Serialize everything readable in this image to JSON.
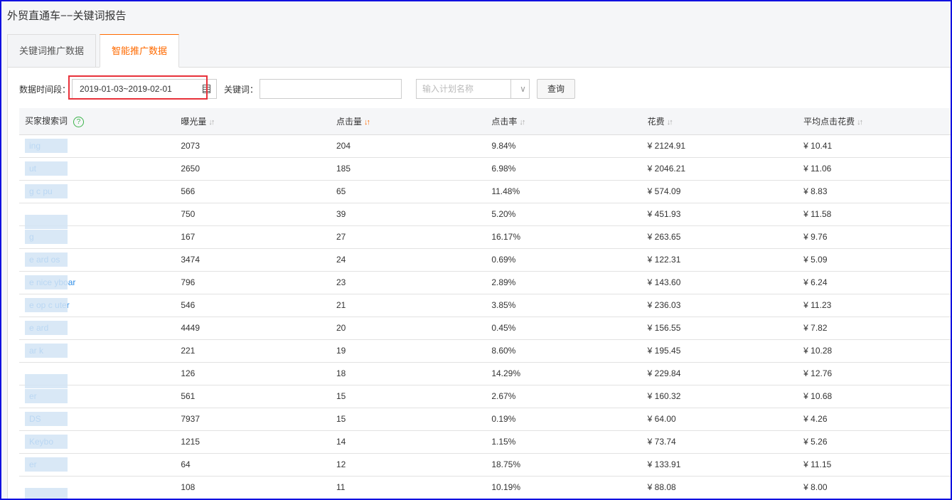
{
  "title": "外贸直通车−−关键词报告",
  "tabs": [
    {
      "label": "关键词推广数据",
      "active": false
    },
    {
      "label": "智能推广数据",
      "active": true
    }
  ],
  "filters": {
    "date_label": "数据时间段：",
    "date_value": "2019-01-03~2019-02-01",
    "keyword_label": "关键词：",
    "keyword_value": "",
    "plan_placeholder": "输入计划名称",
    "query_button": "查询"
  },
  "columns": [
    "买家搜索词",
    "曝光量",
    "点击量",
    "点击率",
    "花费",
    "平均点击花费"
  ],
  "sort_icon": "↓↑",
  "active_sort_column": "点击量",
  "accent_color": "#ff6a00",
  "rows": [
    [
      "ing",
      "2073",
      "204",
      "9.84%",
      "¥ 2124.91",
      "¥ 10.41"
    ],
    [
      "ut",
      "2650",
      "185",
      "6.98%",
      "¥ 2046.21",
      "¥ 11.06"
    ],
    [
      "g c pu",
      "566",
      "65",
      "11.48%",
      "¥ 574.09",
      "¥ 8.83"
    ],
    [
      "",
      "750",
      "39",
      "5.20%",
      "¥ 451.93",
      "¥ 11.58"
    ],
    [
      "g",
      "167",
      "27",
      "16.17%",
      "¥ 263.65",
      "¥ 9.76"
    ],
    [
      "e ard os",
      "3474",
      "24",
      "0.69%",
      "¥ 122.31",
      "¥ 5.09"
    ],
    [
      "e nice yboar",
      "796",
      "23",
      "2.89%",
      "¥ 143.60",
      "¥ 6.24"
    ],
    [
      "e op c uter",
      "546",
      "21",
      "3.85%",
      "¥ 236.03",
      "¥ 11.23"
    ],
    [
      "e ard",
      "4449",
      "20",
      "0.45%",
      "¥ 156.55",
      "¥ 7.82"
    ],
    [
      "ar k",
      "221",
      "19",
      "8.60%",
      "¥ 195.45",
      "¥ 10.28"
    ],
    [
      "",
      "126",
      "18",
      "14.29%",
      "¥ 229.84",
      "¥ 12.76"
    ],
    [
      "er",
      "561",
      "15",
      "2.67%",
      "¥ 160.32",
      "¥ 10.68"
    ],
    [
      "DS",
      "7937",
      "15",
      "0.19%",
      "¥ 64.00",
      "¥ 4.26"
    ],
    [
      "Keybo",
      "1215",
      "14",
      "1.15%",
      "¥ 73.74",
      "¥ 5.26"
    ],
    [
      "er",
      "64",
      "12",
      "18.75%",
      "¥ 133.91",
      "¥ 11.15"
    ],
    [
      "",
      "108",
      "11",
      "10.19%",
      "¥ 88.08",
      "¥ 8.00"
    ]
  ]
}
